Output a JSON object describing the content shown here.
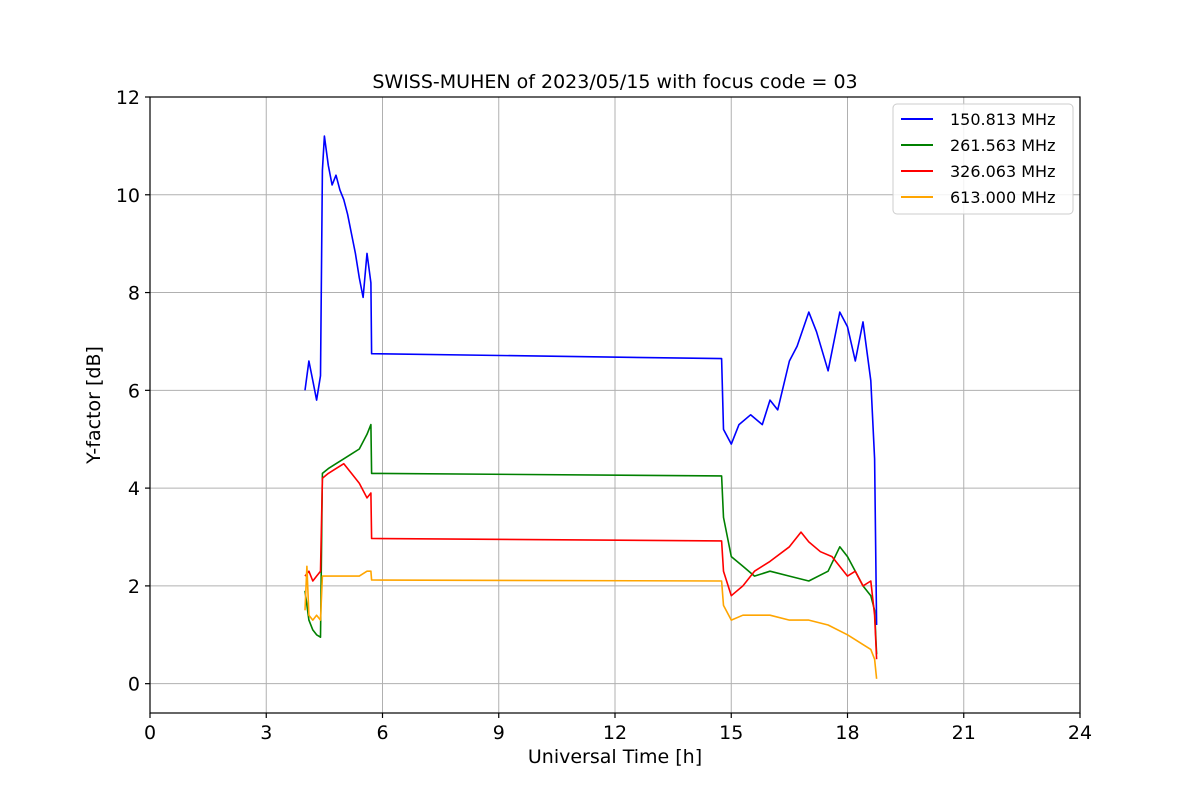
{
  "chart_data": {
    "type": "line",
    "title": "SWISS-MUHEN of 2023/05/15 with focus code = 03",
    "xlabel": "Universal Time [h]",
    "ylabel": "Y-factor [dB]",
    "xlim": [
      0,
      24
    ],
    "ylim": [
      -0.6,
      12
    ],
    "xticks": [
      0,
      3,
      6,
      9,
      12,
      15,
      18,
      21,
      24
    ],
    "yticks": [
      0,
      2,
      4,
      6,
      8,
      10,
      12
    ],
    "grid": true,
    "legend_position": "top-right",
    "series": [
      {
        "name": "150.813 MHz",
        "color": "#0000ff",
        "x": [
          4.0,
          4.1,
          4.2,
          4.3,
          4.4,
          4.45,
          4.5,
          4.6,
          4.7,
          4.8,
          4.9,
          5.0,
          5.1,
          5.2,
          5.3,
          5.4,
          5.5,
          5.6,
          5.7,
          5.72,
          14.75,
          14.8,
          15.0,
          15.2,
          15.5,
          15.8,
          16.0,
          16.2,
          16.5,
          16.7,
          17.0,
          17.2,
          17.5,
          17.8,
          18.0,
          18.2,
          18.4,
          18.6,
          18.7,
          18.75
        ],
        "y": [
          6.0,
          6.6,
          6.2,
          5.8,
          6.3,
          10.5,
          11.2,
          10.6,
          10.2,
          10.4,
          10.1,
          9.9,
          9.6,
          9.2,
          8.8,
          8.3,
          7.9,
          8.8,
          8.2,
          6.75,
          6.65,
          5.2,
          4.9,
          5.3,
          5.5,
          5.3,
          5.8,
          5.6,
          6.6,
          6.9,
          7.6,
          7.2,
          6.4,
          7.6,
          7.3,
          6.6,
          7.4,
          6.2,
          4.6,
          1.2
        ]
      },
      {
        "name": "261.563 MHz",
        "color": "#008000",
        "x": [
          4.0,
          4.1,
          4.2,
          4.3,
          4.4,
          4.45,
          4.6,
          4.8,
          5.0,
          5.2,
          5.4,
          5.6,
          5.7,
          5.72,
          14.75,
          14.8,
          15.0,
          15.3,
          15.6,
          16.0,
          16.5,
          17.0,
          17.5,
          17.8,
          18.0,
          18.2,
          18.4,
          18.6,
          18.7,
          18.75
        ],
        "y": [
          1.9,
          1.3,
          1.1,
          1.0,
          0.95,
          4.3,
          4.4,
          4.5,
          4.6,
          4.7,
          4.8,
          5.1,
          5.3,
          4.3,
          4.25,
          3.4,
          2.6,
          2.4,
          2.2,
          2.3,
          2.2,
          2.1,
          2.3,
          2.8,
          2.6,
          2.3,
          2.0,
          1.8,
          1.5,
          0.6
        ]
      },
      {
        "name": "326.063 MHz",
        "color": "#ff0000",
        "x": [
          4.0,
          4.1,
          4.2,
          4.3,
          4.4,
          4.45,
          4.6,
          4.8,
          5.0,
          5.2,
          5.4,
          5.6,
          5.7,
          5.72,
          14.75,
          14.8,
          15.0,
          15.3,
          15.6,
          16.0,
          16.5,
          16.8,
          17.0,
          17.3,
          17.6,
          18.0,
          18.2,
          18.4,
          18.6,
          18.7,
          18.75
        ],
        "y": [
          2.2,
          2.3,
          2.1,
          2.2,
          2.3,
          4.2,
          4.3,
          4.4,
          4.5,
          4.3,
          4.1,
          3.8,
          3.9,
          2.97,
          2.92,
          2.3,
          1.8,
          2.0,
          2.3,
          2.5,
          2.8,
          3.1,
          2.9,
          2.7,
          2.6,
          2.2,
          2.3,
          2.0,
          2.1,
          1.4,
          0.5
        ]
      },
      {
        "name": "613.000 MHz",
        "color": "#ffa500",
        "x": [
          4.0,
          4.05,
          4.1,
          4.2,
          4.3,
          4.4,
          4.45,
          4.6,
          4.8,
          5.0,
          5.2,
          5.4,
          5.6,
          5.7,
          5.72,
          14.75,
          14.8,
          15.0,
          15.3,
          15.6,
          16.0,
          16.5,
          17.0,
          17.5,
          18.0,
          18.2,
          18.4,
          18.6,
          18.7,
          18.75
        ],
        "y": [
          1.5,
          2.4,
          1.4,
          1.3,
          1.4,
          1.3,
          2.2,
          2.2,
          2.2,
          2.2,
          2.2,
          2.2,
          2.3,
          2.3,
          2.12,
          2.1,
          1.6,
          1.3,
          1.4,
          1.4,
          1.4,
          1.3,
          1.3,
          1.2,
          1.0,
          0.9,
          0.8,
          0.7,
          0.5,
          0.1
        ]
      }
    ]
  }
}
